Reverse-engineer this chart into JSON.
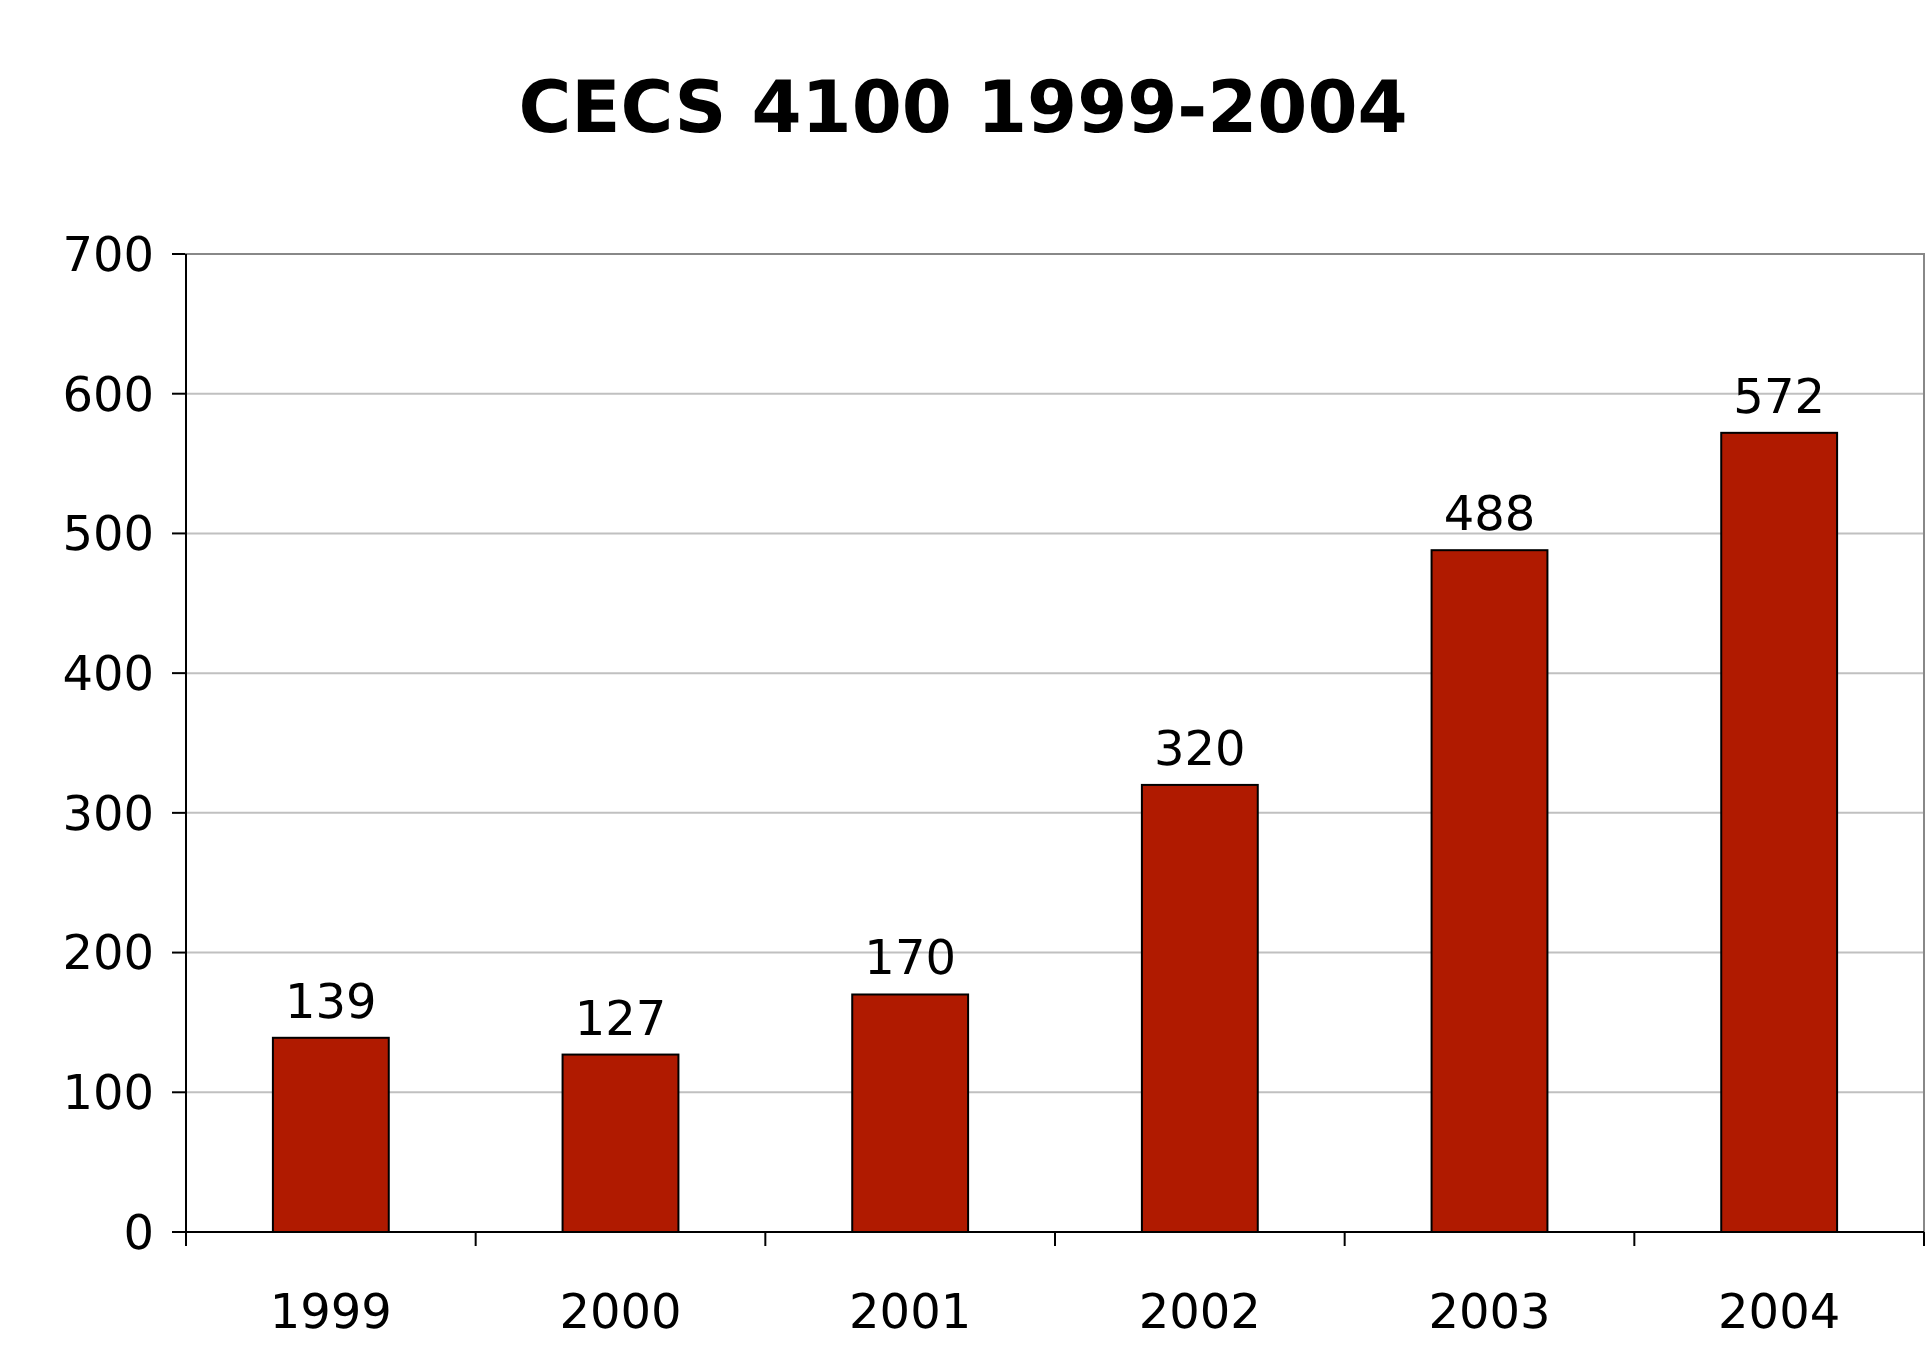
{
  "chart_data": {
    "type": "bar",
    "title": "CECS 4100 1999-2004",
    "categories": [
      "1999",
      "2000",
      "2001",
      "2002",
      "2003",
      "2004"
    ],
    "values": [
      139,
      127,
      170,
      320,
      488,
      572
    ],
    "color": "#b01a00",
    "ylim": [
      0,
      700
    ],
    "yticks": [
      0,
      100,
      200,
      300,
      400,
      500,
      600,
      700
    ],
    "grid": "y",
    "data_labels": true
  }
}
